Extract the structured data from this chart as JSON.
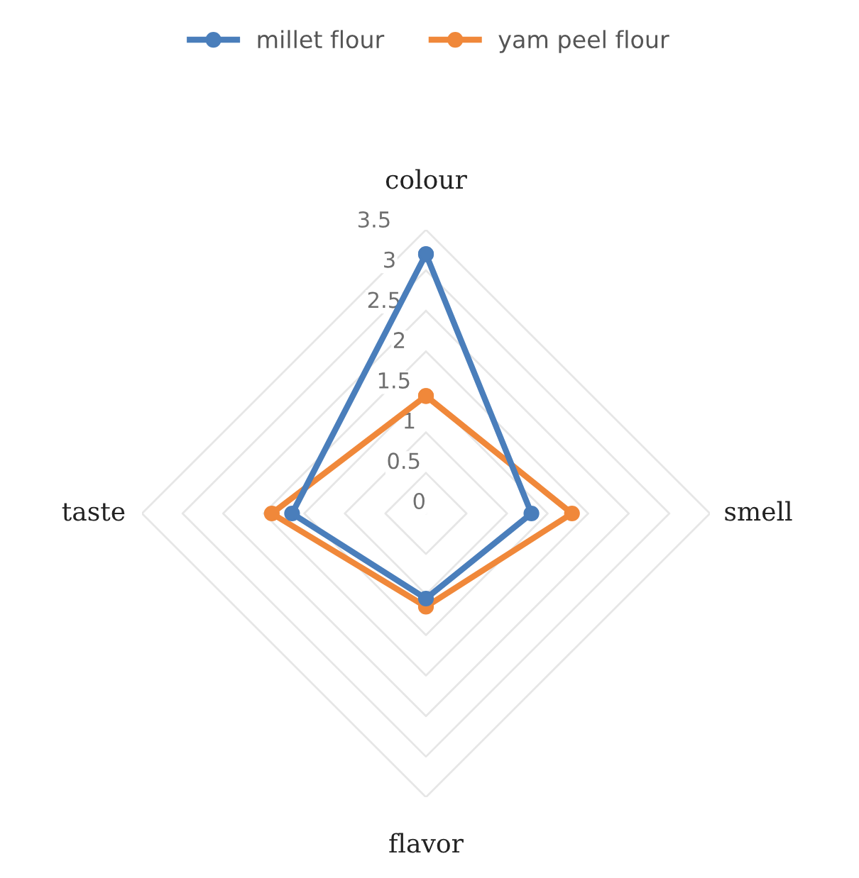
{
  "chart_data": {
    "type": "radar",
    "categories": [
      "colour",
      "smell",
      "flavor",
      "taste"
    ],
    "series": [
      {
        "name": "millet flour",
        "color": "#4a7ebb",
        "values": [
          3.2,
          1.3,
          1.05,
          1.65
        ]
      },
      {
        "name": "yam peel flour",
        "color": "#f0883a",
        "values": [
          1.45,
          1.8,
          1.15,
          1.9
        ]
      }
    ],
    "ylim": [
      0,
      3.5
    ],
    "yticks": [
      0,
      0.5,
      1,
      1.5,
      2,
      2.5,
      3,
      3.5
    ],
    "grid": true,
    "legend": "top",
    "marker": "circle",
    "line_style": "solid"
  }
}
